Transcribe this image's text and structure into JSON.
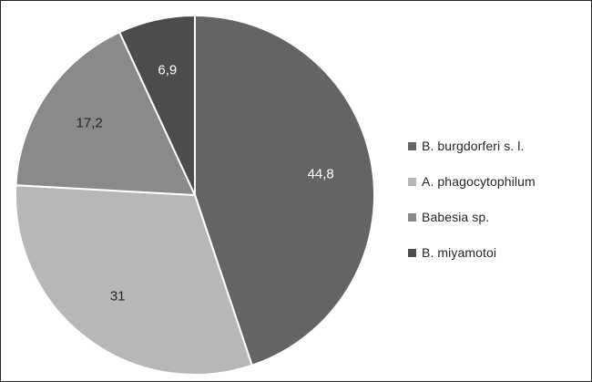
{
  "chart_data": {
    "type": "pie",
    "title": "",
    "slices": [
      {
        "label": "B. burgdorferi s. l.",
        "value": 44.8,
        "display": "44,8",
        "color": "#646464",
        "label_color": "#ffffff"
      },
      {
        "label": "A. phagocytophilum",
        "value": 31,
        "display": "31",
        "color": "#b7b7b7",
        "label_color": "#262626"
      },
      {
        "label": "Babesia sp.",
        "value": 17.2,
        "display": "17,2",
        "color": "#8a8a8a",
        "label_color": "#262626"
      },
      {
        "label": "B. miyamotoi",
        "value": 6.9,
        "display": "6,9",
        "color": "#4c4c4c",
        "label_color": "#ffffff"
      }
    ],
    "legend_position": "right"
  }
}
